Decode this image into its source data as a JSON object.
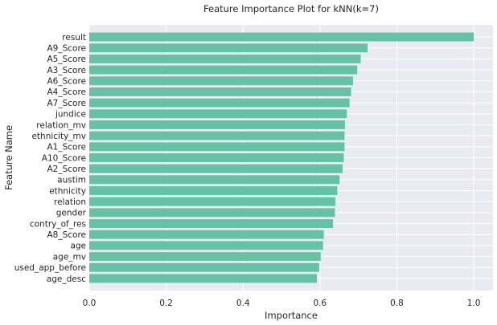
{
  "chart_data": {
    "type": "bar",
    "orientation": "horizontal",
    "title": "Feature Importance Plot for kNN(k=7)",
    "xlabel": "Importance",
    "ylabel": "Feature Name",
    "xlim": [
      0,
      1.05
    ],
    "xticks": [
      0.0,
      0.2,
      0.4,
      0.6,
      0.8,
      1.0
    ],
    "xtick_labels": [
      "0.0",
      "0.2",
      "0.4",
      "0.6",
      "0.8",
      "1.0"
    ],
    "grid": true,
    "bar_color": "#66c2a5",
    "background_color": "#eaeaf2",
    "categories": [
      "result",
      "A9_Score",
      "A5_Score",
      "A3_Score",
      "A6_Score",
      "A4_Score",
      "A7_Score",
      "jundice",
      "relation_mv",
      "ethnicity_mv",
      "A1_Score",
      "A10_Score",
      "A2_Score",
      "austim",
      "ethnicity",
      "relation",
      "gender",
      "contry_of_res",
      "A8_Score",
      "age",
      "age_mv",
      "used_app_before",
      "age_desc"
    ],
    "values": [
      1.0,
      0.724,
      0.706,
      0.697,
      0.686,
      0.681,
      0.677,
      0.67,
      0.665,
      0.664,
      0.664,
      0.662,
      0.659,
      0.651,
      0.645,
      0.64,
      0.639,
      0.634,
      0.61,
      0.608,
      0.602,
      0.598,
      0.592
    ]
  }
}
